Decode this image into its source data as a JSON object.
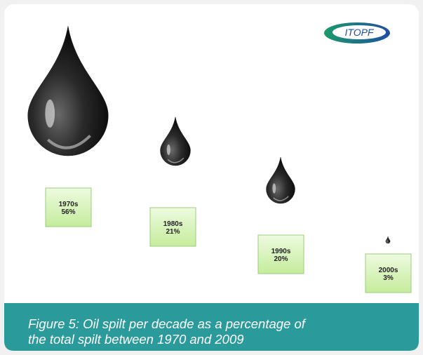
{
  "logo": "ITOPF",
  "chart_data": {
    "type": "drop",
    "title": "Figure 5: Oil spilt per decade as a percentage of the total spilt between 1970 and 2009",
    "categories": [
      "1970s",
      "1980s",
      "1990s",
      "2000s"
    ],
    "values": [
      56,
      21,
      20,
      3
    ],
    "value_labels": [
      "56%",
      "21%",
      "20%",
      "3%"
    ],
    "color": "#1a1a1a"
  }
}
